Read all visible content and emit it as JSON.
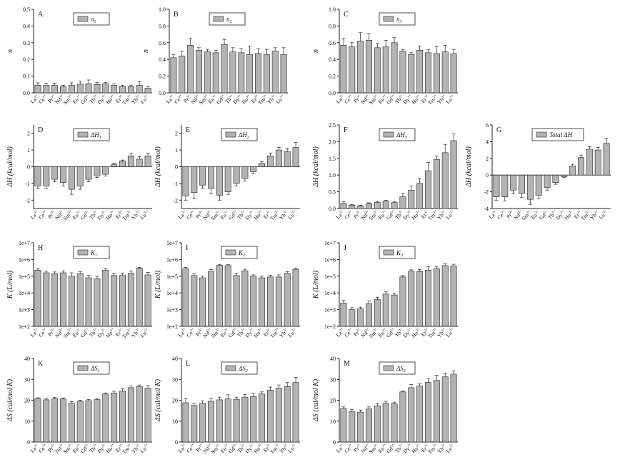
{
  "figure": {
    "categories": [
      "La",
      "Ce",
      "Pr",
      "Nd",
      "Sm",
      "Eu",
      "Gd",
      "Tb",
      "Dy",
      "Ho",
      "Er",
      "Tm",
      "Yb",
      "Lu"
    ],
    "category_superscript": "3+",
    "bar_color": "#b3b3b3"
  },
  "chart_data": [
    {
      "panel": "A",
      "type": "bar",
      "legend": "n",
      "legend_sub": "1",
      "ylabel": "n",
      "ylim": [
        0,
        0.5
      ],
      "ticks": [
        "0.0",
        "0.1",
        "0.2",
        "0.3",
        "0.4",
        "0.5"
      ],
      "values": [
        0.045,
        0.045,
        0.045,
        0.038,
        0.045,
        0.052,
        0.055,
        0.05,
        0.055,
        0.045,
        0.038,
        0.038,
        0.045,
        0.028
      ],
      "errors": [
        0.015,
        0.012,
        0.012,
        0.008,
        0.015,
        0.018,
        0.022,
        0.012,
        0.008,
        0.008,
        0.008,
        0.008,
        0.022,
        0.01
      ]
    },
    {
      "panel": "B",
      "type": "bar",
      "legend": "n",
      "legend_sub": "2",
      "ylabel": "n",
      "ylim": [
        0,
        1.0
      ],
      "ticks": [
        "0.0",
        "0.2",
        "0.4",
        "0.6",
        "0.8",
        "1.0"
      ],
      "values": [
        0.42,
        0.44,
        0.57,
        0.51,
        0.49,
        0.48,
        0.58,
        0.49,
        0.48,
        0.46,
        0.47,
        0.46,
        0.5,
        0.46
      ],
      "errors": [
        0.04,
        0.06,
        0.08,
        0.03,
        0.03,
        0.03,
        0.06,
        0.05,
        0.05,
        0.1,
        0.06,
        0.06,
        0.04,
        0.08
      ]
    },
    {
      "panel": "C",
      "type": "bar",
      "legend": "n",
      "legend_sub": "3",
      "ylabel": "n",
      "ylim": [
        0,
        1.0
      ],
      "ticks": [
        "0.0",
        "0.2",
        "0.4",
        "0.6",
        "0.8",
        "1.0"
      ],
      "values": [
        0.57,
        0.55,
        0.62,
        0.63,
        0.54,
        0.55,
        0.6,
        0.5,
        0.46,
        0.51,
        0.48,
        0.47,
        0.49,
        0.47
      ],
      "errors": [
        0.08,
        0.05,
        0.1,
        0.08,
        0.05,
        0.08,
        0.06,
        0.02,
        0.02,
        0.05,
        0.04,
        0.08,
        0.08,
        0.05
      ]
    },
    {
      "panel": "D",
      "type": "bar",
      "legend": "ΔH",
      "legend_sub": "1",
      "ylabel": "ΔH (kcal/mol)",
      "ylim": [
        -2.5,
        2.5
      ],
      "ticks": [
        "-2",
        "-1",
        "0",
        "1",
        "2"
      ],
      "tick_values": [
        -2,
        -1,
        0,
        1,
        2
      ],
      "values": [
        -1.15,
        -1.15,
        -0.75,
        -0.95,
        -1.35,
        -1.15,
        -0.75,
        -0.55,
        -0.45,
        0.15,
        0.35,
        0.65,
        0.45,
        0.65
      ],
      "errors": [
        0.15,
        0.15,
        0.15,
        0.2,
        0.3,
        0.2,
        0.15,
        0.1,
        0.1,
        0.05,
        0.05,
        0.15,
        0.15,
        0.15
      ]
    },
    {
      "panel": "E",
      "type": "bar",
      "legend": "ΔH",
      "legend_sub": "2",
      "ylabel": "ΔH (kcal/mol)",
      "ylim": [
        -2.5,
        2.5
      ],
      "ticks": [
        "-2",
        "-1",
        "0",
        "1",
        "2"
      ],
      "tick_values": [
        -2,
        -1,
        0,
        1,
        2
      ],
      "values": [
        -1.75,
        -1.55,
        -1.1,
        -1.3,
        -1.7,
        -1.5,
        -1.0,
        -0.7,
        -0.3,
        0.2,
        0.65,
        1.0,
        0.9,
        1.15
      ],
      "errors": [
        0.25,
        0.35,
        0.2,
        0.3,
        0.3,
        0.15,
        0.15,
        0.15,
        0.1,
        0.1,
        0.15,
        0.15,
        0.2,
        0.3
      ]
    },
    {
      "panel": "F",
      "type": "bar",
      "legend": "ΔH",
      "legend_sub": "3",
      "ylabel": "ΔH (kcal/mol)",
      "ylim": [
        0,
        2.5
      ],
      "ticks": [
        "0.0",
        "0.5",
        "1.0",
        "1.5",
        "2.0",
        "2.5"
      ],
      "values": [
        0.15,
        0.1,
        0.08,
        0.15,
        0.18,
        0.22,
        0.18,
        0.35,
        0.55,
        0.75,
        1.13,
        1.47,
        1.67,
        2.03
      ],
      "errors": [
        0.05,
        0.02,
        0.02,
        0.02,
        0.03,
        0.03,
        0.03,
        0.1,
        0.12,
        0.15,
        0.25,
        0.1,
        0.25,
        0.2
      ]
    },
    {
      "panel": "G",
      "type": "bar",
      "legend": "Total ΔH",
      "legend_sub": "",
      "ylabel": "ΔH (kcal/mol)",
      "ylim": [
        -4,
        6
      ],
      "ticks": [
        "-4",
        "-2",
        "0",
        "2",
        "4",
        "6"
      ],
      "tick_values": [
        -4,
        -2,
        0,
        2,
        4,
        6
      ],
      "values": [
        -2.6,
        -2.6,
        -1.8,
        -2.2,
        -2.9,
        -2.4,
        -1.5,
        -0.9,
        -0.2,
        1.1,
        2.1,
        3.1,
        3.0,
        3.8
      ],
      "errors": [
        0.4,
        0.5,
        0.4,
        0.5,
        0.6,
        0.4,
        0.3,
        0.2,
        0.1,
        0.2,
        0.3,
        0.3,
        0.3,
        0.6
      ]
    },
    {
      "panel": "H",
      "type": "bar",
      "legend": "K",
      "legend_sub": "1",
      "ylabel": "K (L/mol)",
      "scale": "log",
      "ylim": [
        100,
        10000000
      ],
      "ticks": [
        "1e+2",
        "1e+3",
        "1e+4",
        "1e+5",
        "1e+6",
        "1e+7"
      ],
      "values": [
        230000,
        160000,
        140000,
        160000,
        100000,
        140000,
        80000,
        70000,
        230000,
        110000,
        110000,
        150000,
        300000,
        120000
      ],
      "errors": [
        50000,
        40000,
        40000,
        50000,
        60000,
        50000,
        30000,
        30000,
        60000,
        40000,
        40000,
        50000,
        40000,
        50000
      ]
    },
    {
      "panel": "I",
      "type": "bar",
      "legend": "K",
      "legend_sub": "2",
      "ylabel": "K (L/mol)",
      "scale": "log",
      "ylim": [
        100,
        10000000
      ],
      "ticks": [
        "1e+2",
        "1e+3",
        "1e+4",
        "1e+5",
        "1e+6",
        "1e+7"
      ],
      "values": [
        280000,
        110000,
        80000,
        200000,
        450000,
        430000,
        110000,
        210000,
        100000,
        80000,
        90000,
        90000,
        150000,
        260000
      ],
      "errors": [
        60000,
        30000,
        20000,
        50000,
        60000,
        60000,
        40000,
        50000,
        20000,
        20000,
        20000,
        30000,
        40000,
        50000
      ]
    },
    {
      "panel": "J",
      "type": "bar",
      "legend": "K",
      "legend_sub": "3",
      "ylabel": "K (L/mol)",
      "scale": "log",
      "ylim": [
        100,
        10000000
      ],
      "ticks": [
        "1e+2",
        "1e+3",
        "1e+4",
        "1e+5",
        "1e+6",
        "1e+7"
      ],
      "values": [
        2500,
        1000,
        1100,
        2300,
        4000,
        8500,
        7500,
        90000,
        200000,
        190000,
        230000,
        280000,
        430000,
        420000
      ],
      "errors": [
        1000,
        300,
        300,
        1000,
        1500,
        3000,
        2000,
        20000,
        40000,
        60000,
        150000,
        80000,
        120000,
        100000
      ]
    },
    {
      "panel": "K",
      "type": "bar",
      "legend": "ΔS",
      "legend_sub": "1",
      "ylabel": "ΔS (cal/mol K)",
      "ylim": [
        0,
        40
      ],
      "ticks": [
        "0",
        "10",
        "20",
        "30",
        "40"
      ],
      "values": [
        20.8,
        20.2,
        20.8,
        20.6,
        18.5,
        19.5,
        19.8,
        20.3,
        23.0,
        23.5,
        24.3,
        26.0,
        26.5,
        25.8
      ],
      "errors": [
        0.4,
        0.5,
        0.5,
        0.5,
        0.8,
        0.5,
        0.6,
        0.6,
        0.5,
        0.8,
        1.2,
        0.8,
        0.8,
        1.2
      ]
    },
    {
      "panel": "L",
      "type": "bar",
      "legend": "ΔS",
      "legend_sub": "2",
      "ylabel": "ΔS (cal/mol K)",
      "ylim": [
        0,
        40
      ],
      "ticks": [
        "0",
        "10",
        "20",
        "30",
        "40"
      ],
      "values": [
        18.8,
        17.5,
        18.5,
        19.5,
        20.2,
        20.6,
        20.5,
        21.5,
        21.8,
        23.0,
        24.8,
        25.8,
        26.5,
        28.5
      ],
      "errors": [
        2.0,
        0.8,
        1.2,
        1.5,
        1.3,
        2.0,
        1.0,
        1.2,
        1.5,
        1.0,
        1.5,
        1.5,
        2.0,
        2.5
      ]
    },
    {
      "panel": "M",
      "type": "bar",
      "legend": "ΔS",
      "legend_sub": "3",
      "ylabel": "ΔS (cal/mol K)",
      "ylim": [
        0,
        40
      ],
      "ticks": [
        "0",
        "10",
        "20",
        "30",
        "40"
      ],
      "values": [
        16.0,
        14.5,
        14.3,
        15.8,
        17.3,
        18.5,
        18.3,
        24.0,
        26.0,
        26.8,
        28.5,
        29.5,
        31.2,
        32.5
      ],
      "errors": [
        0.8,
        1.0,
        1.0,
        1.0,
        1.0,
        1.0,
        0.8,
        0.5,
        1.5,
        1.0,
        2.0,
        2.5,
        1.5,
        1.5
      ]
    }
  ]
}
